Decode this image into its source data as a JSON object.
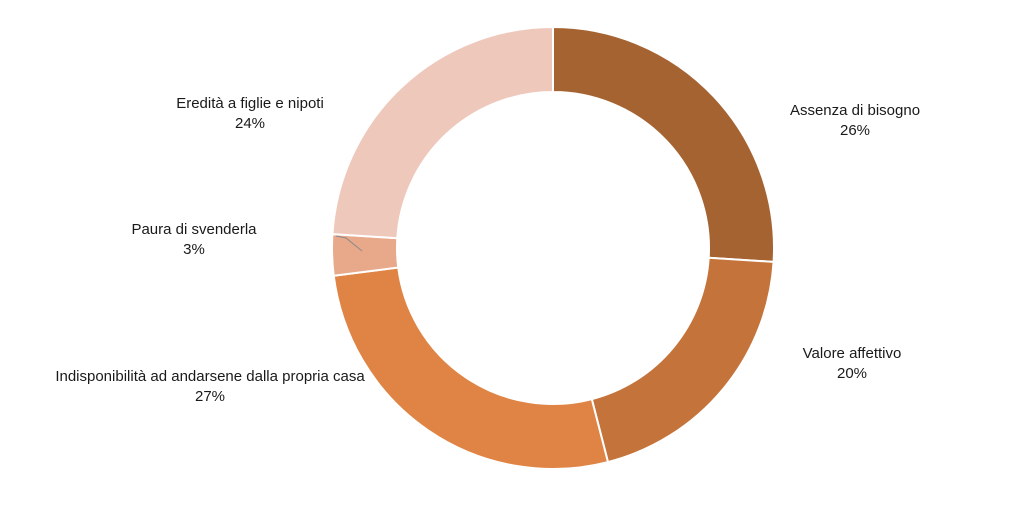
{
  "chart_data": {
    "type": "pie",
    "variant": "donut",
    "title": "",
    "legend": "none",
    "slices": [
      {
        "label": "Assenza di bisogno",
        "value": 26,
        "display": "26%",
        "color": "#a66332"
      },
      {
        "label": "Valore affettivo",
        "value": 20,
        "display": "20%",
        "color": "#c4733b"
      },
      {
        "label": "Indisponibilità ad andarsene dalla propria casa",
        "value": 27,
        "display": "27%",
        "color": "#df8444"
      },
      {
        "label": "Paura di svenderla",
        "value": 3,
        "display": "3%",
        "color": "#e8a88a"
      },
      {
        "label": "Eredità a figlie e nipoti",
        "value": 24,
        "display": "24%",
        "color": "#efc8bc"
      }
    ]
  }
}
